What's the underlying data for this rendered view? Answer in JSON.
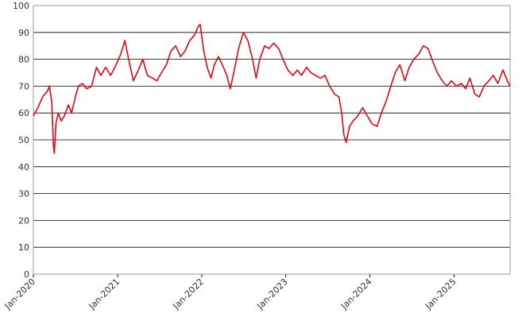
{
  "chart_data": {
    "type": "line",
    "title": "",
    "xlabel": "",
    "ylabel": "",
    "ylim": [
      0,
      100
    ],
    "xlim": [
      "2020-01-01",
      "2025-09-01"
    ],
    "y_ticks": [
      "0",
      "10",
      "20",
      "30",
      "40",
      "50",
      "60",
      "70",
      "80",
      "90",
      "100"
    ],
    "x_ticks": [
      {
        "label": "Jan-2020",
        "date": "2020-01-01"
      },
      {
        "label": "Jan-2021",
        "date": "2021-01-01"
      },
      {
        "label": "Jan-2022",
        "date": "2022-01-01"
      },
      {
        "label": "Jan-2023",
        "date": "2023-01-01"
      },
      {
        "label": "Jan-2024",
        "date": "2024-01-01"
      },
      {
        "label": "Jan-2025",
        "date": "2025-01-01"
      }
    ],
    "grid": "horizontal",
    "legend": "none",
    "series": [
      {
        "color": "#e30613",
        "points": [
          [
            "2020-01-01",
            59
          ],
          [
            "2020-01-21",
            62
          ],
          [
            "2020-02-10",
            66
          ],
          [
            "2020-03-01",
            68
          ],
          [
            "2020-03-11",
            70
          ],
          [
            "2020-03-21",
            64
          ],
          [
            "2020-03-28",
            48
          ],
          [
            "2020-04-01",
            45
          ],
          [
            "2020-04-08",
            56
          ],
          [
            "2020-04-18",
            60
          ],
          [
            "2020-05-01",
            57
          ],
          [
            "2020-05-15",
            59
          ],
          [
            "2020-06-01",
            63
          ],
          [
            "2020-06-15",
            60
          ],
          [
            "2020-07-01",
            66
          ],
          [
            "2020-07-15",
            70
          ],
          [
            "2020-08-01",
            71
          ],
          [
            "2020-08-20",
            69
          ],
          [
            "2020-09-10",
            70
          ],
          [
            "2020-10-01",
            77
          ],
          [
            "2020-10-20",
            74
          ],
          [
            "2020-11-10",
            77
          ],
          [
            "2020-12-01",
            74
          ],
          [
            "2020-12-20",
            77
          ],
          [
            "2021-01-15",
            82
          ],
          [
            "2021-02-01",
            87
          ],
          [
            "2021-02-20",
            79
          ],
          [
            "2021-03-10",
            72
          ],
          [
            "2021-04-01",
            76
          ],
          [
            "2021-04-20",
            80
          ],
          [
            "2021-05-10",
            74
          ],
          [
            "2021-06-01",
            73
          ],
          [
            "2021-06-20",
            72
          ],
          [
            "2021-07-10",
            75
          ],
          [
            "2021-08-01",
            78
          ],
          [
            "2021-08-20",
            83
          ],
          [
            "2021-09-10",
            85
          ],
          [
            "2021-10-01",
            81
          ],
          [
            "2021-10-20",
            83
          ],
          [
            "2021-11-10",
            87
          ],
          [
            "2021-12-01",
            89
          ],
          [
            "2021-12-15",
            92
          ],
          [
            "2021-12-25",
            93
          ],
          [
            "2022-01-10",
            83
          ],
          [
            "2022-01-25",
            77
          ],
          [
            "2022-02-10",
            73
          ],
          [
            "2022-02-25",
            78
          ],
          [
            "2022-03-15",
            81
          ],
          [
            "2022-04-05",
            77
          ],
          [
            "2022-04-20",
            74
          ],
          [
            "2022-05-05",
            69
          ],
          [
            "2022-05-20",
            75
          ],
          [
            "2022-06-10",
            84
          ],
          [
            "2022-07-01",
            90
          ],
          [
            "2022-07-20",
            87
          ],
          [
            "2022-08-10",
            80
          ],
          [
            "2022-08-25",
            73
          ],
          [
            "2022-09-10",
            80
          ],
          [
            "2022-10-01",
            85
          ],
          [
            "2022-10-20",
            84
          ],
          [
            "2022-11-10",
            86
          ],
          [
            "2022-12-01",
            84
          ],
          [
            "2022-12-20",
            80
          ],
          [
            "2023-01-10",
            76
          ],
          [
            "2023-02-01",
            74
          ],
          [
            "2023-02-20",
            76
          ],
          [
            "2023-03-10",
            74
          ],
          [
            "2023-04-01",
            77
          ],
          [
            "2023-04-20",
            75
          ],
          [
            "2023-05-10",
            74
          ],
          [
            "2023-06-01",
            73
          ],
          [
            "2023-06-20",
            74
          ],
          [
            "2023-07-10",
            70
          ],
          [
            "2023-08-01",
            67
          ],
          [
            "2023-08-20",
            66
          ],
          [
            "2023-09-01",
            60
          ],
          [
            "2023-09-10",
            52
          ],
          [
            "2023-09-20",
            49
          ],
          [
            "2023-10-05",
            55
          ],
          [
            "2023-10-20",
            57
          ],
          [
            "2023-11-10",
            59
          ],
          [
            "2023-12-01",
            62
          ],
          [
            "2023-12-20",
            59
          ],
          [
            "2024-01-10",
            56
          ],
          [
            "2024-02-01",
            55
          ],
          [
            "2024-02-20",
            60
          ],
          [
            "2024-03-10",
            64
          ],
          [
            "2024-04-01",
            70
          ],
          [
            "2024-04-20",
            75
          ],
          [
            "2024-05-10",
            78
          ],
          [
            "2024-06-01",
            72
          ],
          [
            "2024-06-20",
            77
          ],
          [
            "2024-07-10",
            80
          ],
          [
            "2024-08-01",
            82
          ],
          [
            "2024-08-20",
            85
          ],
          [
            "2024-09-10",
            84
          ],
          [
            "2024-10-01",
            79
          ],
          [
            "2024-10-20",
            75
          ],
          [
            "2024-11-10",
            72
          ],
          [
            "2024-12-01",
            70
          ],
          [
            "2024-12-20",
            72
          ],
          [
            "2025-01-10",
            70
          ],
          [
            "2025-02-01",
            71
          ],
          [
            "2025-02-20",
            69
          ],
          [
            "2025-03-10",
            73
          ],
          [
            "2025-04-01",
            67
          ],
          [
            "2025-04-20",
            66
          ],
          [
            "2025-05-10",
            70
          ],
          [
            "2025-06-01",
            72
          ],
          [
            "2025-06-20",
            74
          ],
          [
            "2025-07-10",
            71
          ],
          [
            "2025-08-01",
            76
          ],
          [
            "2025-08-20",
            72
          ],
          [
            "2025-09-01",
            70
          ]
        ]
      }
    ]
  }
}
